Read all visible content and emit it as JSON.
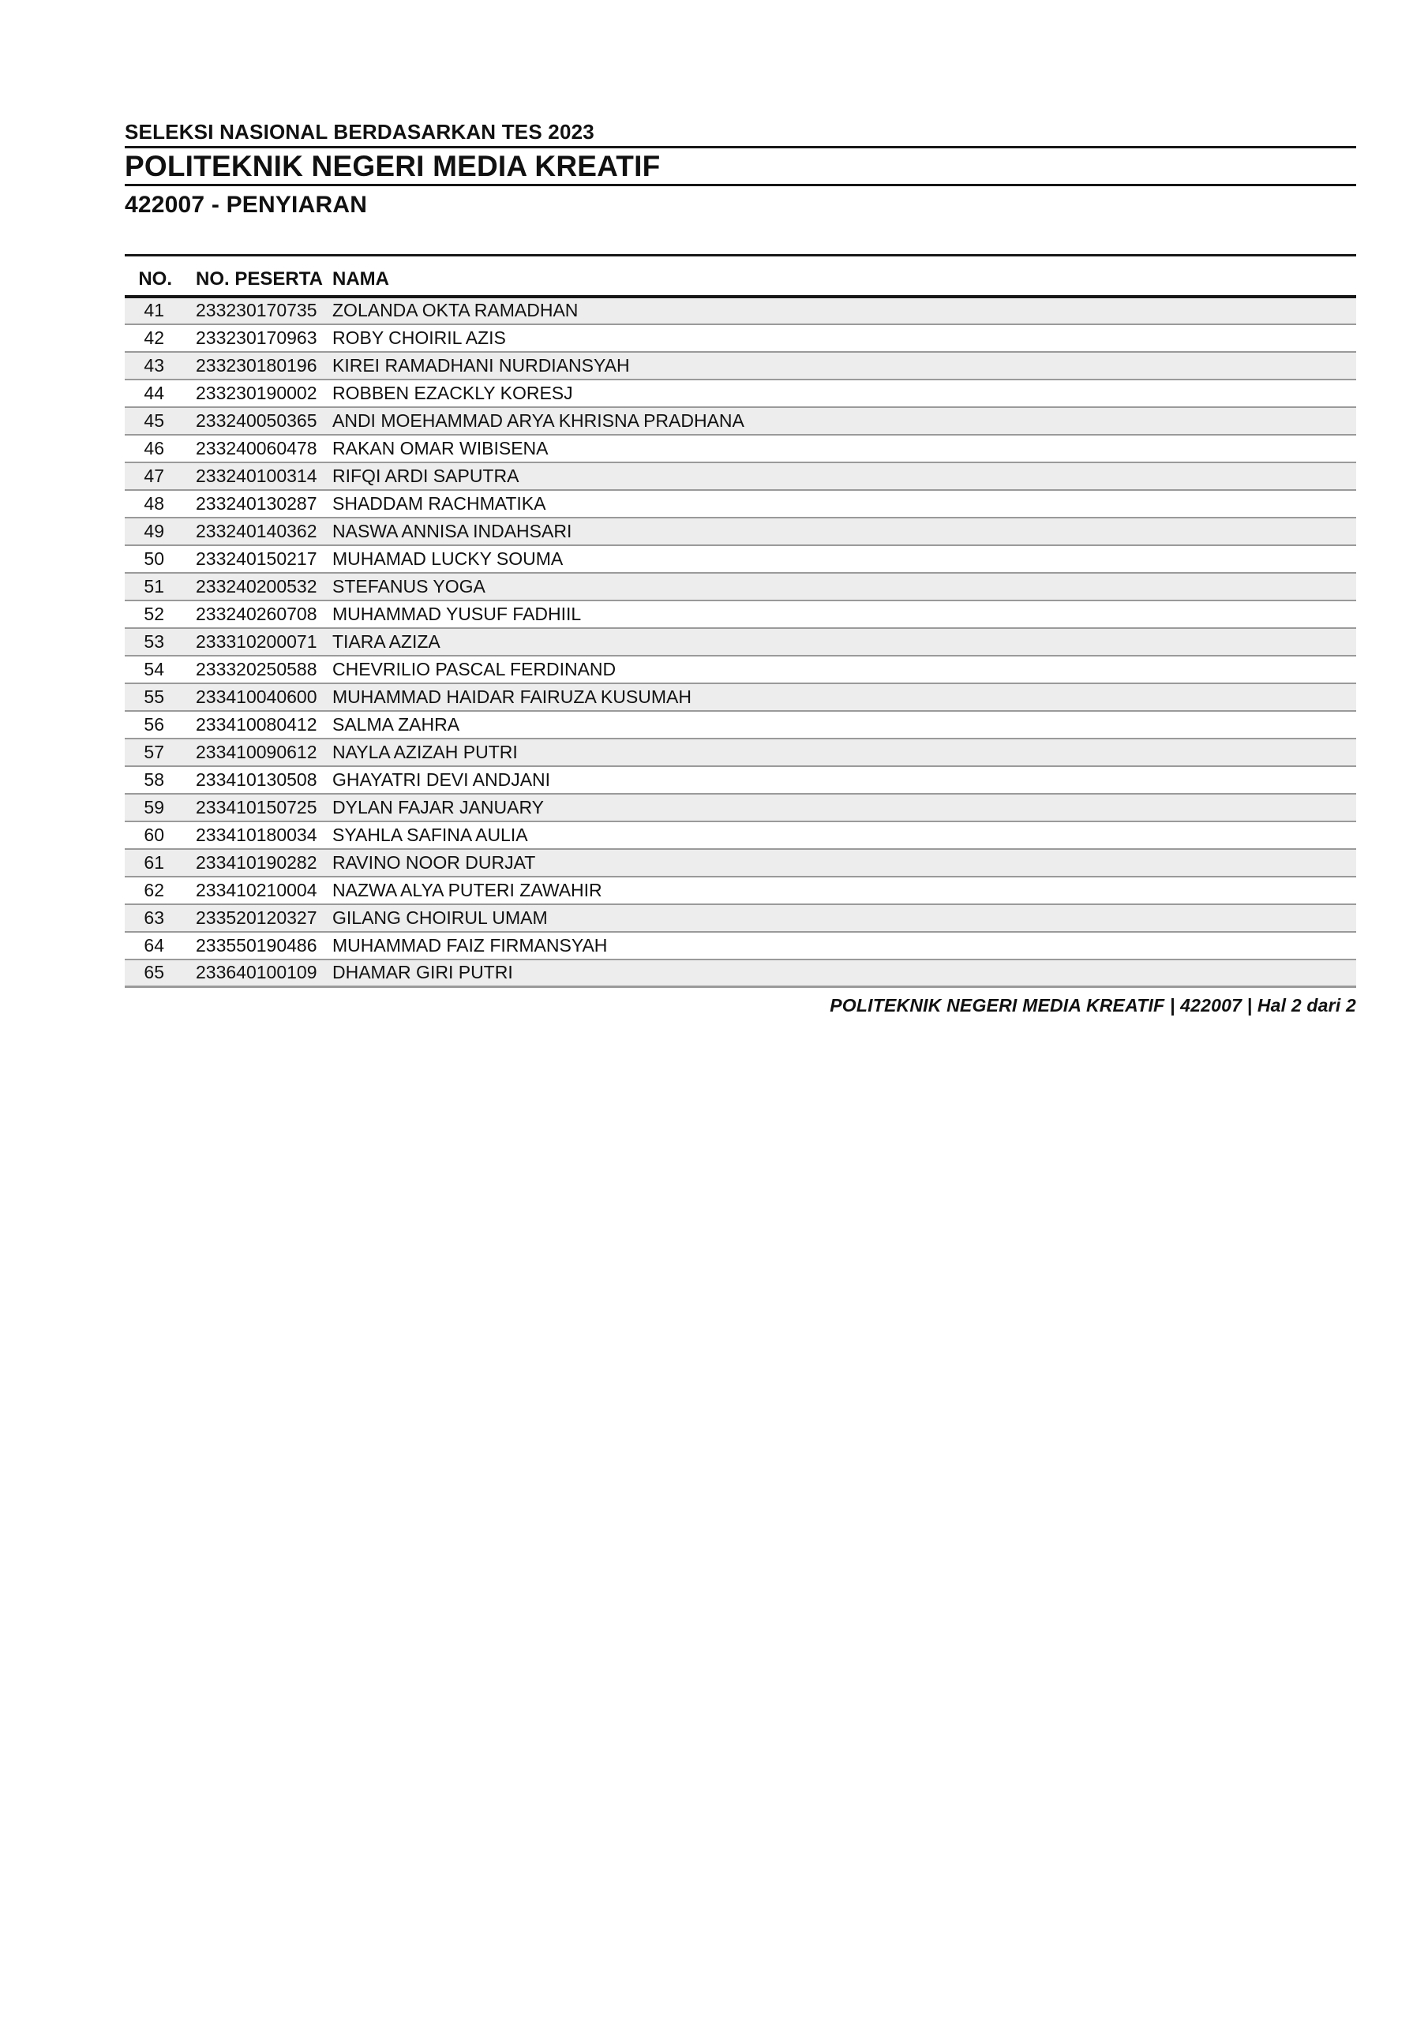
{
  "header": {
    "event_title": "SELEKSI NASIONAL BERDASARKAN TES 2023",
    "institution": "POLITEKNIK NEGERI MEDIA KREATIF",
    "program": "422007 - PENYIARAN"
  },
  "table": {
    "columns": [
      "NO.",
      "NO. PESERTA",
      "NAMA"
    ],
    "rows": [
      [
        "41",
        "233230170735",
        "ZOLANDA OKTA RAMADHAN"
      ],
      [
        "42",
        "233230170963",
        "ROBY CHOIRIL AZIS"
      ],
      [
        "43",
        "233230180196",
        "KIREI RAMADHANI NURDIANSYAH"
      ],
      [
        "44",
        "233230190002",
        "ROBBEN EZACKLY KORESJ"
      ],
      [
        "45",
        "233240050365",
        "ANDI MOEHAMMAD ARYA KHRISNA PRADHANA"
      ],
      [
        "46",
        "233240060478",
        "RAKAN OMAR WIBISENA"
      ],
      [
        "47",
        "233240100314",
        "RIFQI ARDI SAPUTRA"
      ],
      [
        "48",
        "233240130287",
        "SHADDAM RACHMATIKA"
      ],
      [
        "49",
        "233240140362",
        "NASWA ANNISA INDAHSARI"
      ],
      [
        "50",
        "233240150217",
        "MUHAMAD LUCKY SOUMA"
      ],
      [
        "51",
        "233240200532",
        "STEFANUS YOGA"
      ],
      [
        "52",
        "233240260708",
        "MUHAMMAD YUSUF FADHIIL"
      ],
      [
        "53",
        "233310200071",
        "TIARA AZIZA"
      ],
      [
        "54",
        "233320250588",
        "CHEVRILIO PASCAL FERDINAND"
      ],
      [
        "55",
        "233410040600",
        "MUHAMMAD HAIDAR FAIRUZA KUSUMAH"
      ],
      [
        "56",
        "233410080412",
        "SALMA ZAHRA"
      ],
      [
        "57",
        "233410090612",
        "NAYLA AZIZAH PUTRI"
      ],
      [
        "58",
        "233410130508",
        "GHAYATRI DEVI ANDJANI"
      ],
      [
        "59",
        "233410150725",
        "DYLAN FAJAR JANUARY"
      ],
      [
        "60",
        "233410180034",
        "SYAHLA SAFINA AULIA"
      ],
      [
        "61",
        "233410190282",
        "RAVINO NOOR DURJAT"
      ],
      [
        "62",
        "233410210004",
        "NAZWA ALYA PUTERI ZAWAHIR"
      ],
      [
        "63",
        "233520120327",
        "GILANG CHOIRUL UMAM"
      ],
      [
        "64",
        "233550190486",
        "MUHAMMAD FAIZ FIRMANSYAH"
      ],
      [
        "65",
        "233640100109",
        "DHAMAR GIRI PUTRI"
      ]
    ]
  },
  "footer": {
    "text": "POLITEKNIK NEGERI MEDIA KREATIF | 422007 | Hal 2 dari 2"
  },
  "colors": {
    "text": "#111111",
    "header_line": "#161616",
    "row_stripe": "#ededed",
    "row_border": "#9a9a9a"
  }
}
